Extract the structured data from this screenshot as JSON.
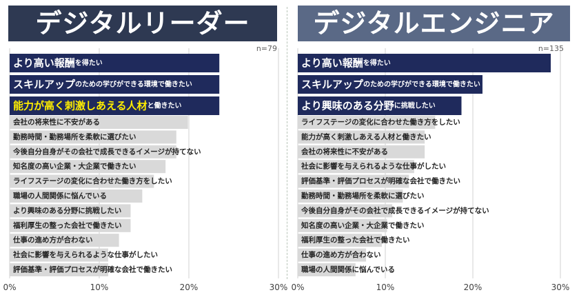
{
  "chart_data": [
    {
      "type": "bar",
      "orientation": "horizontal",
      "title": "デジタルリーダー",
      "n_label": "n=79",
      "xlim": [
        0,
        30
      ],
      "xticks": [
        "0%",
        "10%",
        "20%",
        "30%"
      ],
      "grid": true,
      "highlight_count": 3,
      "highlight_title_color": "#2e3952",
      "categories": [
        {
          "main": "より高い報酬",
          "suffix": "を得たい",
          "value": 23.4
        },
        {
          "main": "スキルアップ",
          "suffix": "のための学びができる環境で働きたい",
          "value": 23.4
        },
        {
          "main": "能力が高く刺激しあえる人材",
          "suffix": "と働きたい",
          "value": 23.4
        },
        {
          "main": "会社の将来性に不安がある",
          "suffix": "",
          "value": 19.9
        },
        {
          "main": "勤務時間・勤務場所を柔軟に選びたい",
          "suffix": "",
          "value": 18.6
        },
        {
          "main": "今後自分自身がその会社で成長できるイメージが持てない",
          "suffix": "",
          "value": 18.6
        },
        {
          "main": "知名度の高い企業・大企業で働きたい",
          "suffix": "",
          "value": 17.4
        },
        {
          "main": "ライフステージの変化に合わせた働き方をしたい",
          "suffix": "",
          "value": 16.1
        },
        {
          "main": "職場の人間関係に悩んでいる",
          "suffix": "",
          "value": 14.8
        },
        {
          "main": "より興味のある分野に挑戦したい",
          "suffix": "",
          "value": 13.5
        },
        {
          "main": "福利厚生の整った会社で働きたい",
          "suffix": "",
          "value": 13.5
        },
        {
          "main": "仕事の進め方が合わない",
          "suffix": "",
          "value": 12.2
        },
        {
          "main": "社会に影響を与えられるような仕事がしたい",
          "suffix": "",
          "value": 11.0
        },
        {
          "main": "評価基準・評価プロセスが明確な会社で働きたい",
          "suffix": "",
          "value": 11.0
        }
      ]
    },
    {
      "type": "bar",
      "orientation": "horizontal",
      "title": "デジタルエンジニア",
      "n_label": "n=135",
      "xlim": [
        0,
        30
      ],
      "xticks": [
        "0%",
        "10%",
        "20%",
        "30%"
      ],
      "grid": true,
      "highlight_count": 3,
      "highlight_title_color": "#5a6986",
      "categories": [
        {
          "main": "より高い報酬",
          "suffix": "を得たい",
          "value": 28.9
        },
        {
          "main": "スキルアップ",
          "suffix": "のための学びができる環境で働きたい",
          "value": 21.1
        },
        {
          "main": "より興味のある分野",
          "suffix": "に挑戦したい",
          "value": 18.7
        },
        {
          "main": "ライフステージの変化に合わせた働き方をしたい",
          "suffix": "",
          "value": 15.7
        },
        {
          "main": "能力が高く刺激しあえる人材と働きたい",
          "suffix": "",
          "value": 14.5
        },
        {
          "main": "会社の将来性に不安がある",
          "suffix": "",
          "value": 14.5
        },
        {
          "main": "社会に影響を与えられるような仕事がしたい",
          "suffix": "",
          "value": 13.3
        },
        {
          "main": "評価基準・評価プロセスが明確な会社で働きたい",
          "suffix": "",
          "value": 12.7
        },
        {
          "main": "勤務時間・勤務場所を柔軟に選びたい",
          "suffix": "",
          "value": 12.0
        },
        {
          "main": "今後自分自身がその会社で成長できるイメージが持てない",
          "suffix": "",
          "value": 10.8
        },
        {
          "main": "知名度の高い企業・大企業で働きたい",
          "suffix": "",
          "value": 10.2
        },
        {
          "main": "福利厚生の整った会社で働きたい",
          "suffix": "",
          "value": 9.6
        },
        {
          "main": "仕事の進め方が合わない",
          "suffix": "",
          "value": 7.8
        },
        {
          "main": "職場の人間関係に悩んでいる",
          "suffix": "",
          "value": 6.6
        }
      ]
    }
  ],
  "colors": {
    "highlight_bar": "#1f2a5c",
    "normal_bar": "#d9d9d9",
    "highlight_text": "#ffffff",
    "emphasis_text": "#ffee00",
    "normal_text": "#262626",
    "grid": "#d0d0d0",
    "tick_text": "#404040"
  }
}
